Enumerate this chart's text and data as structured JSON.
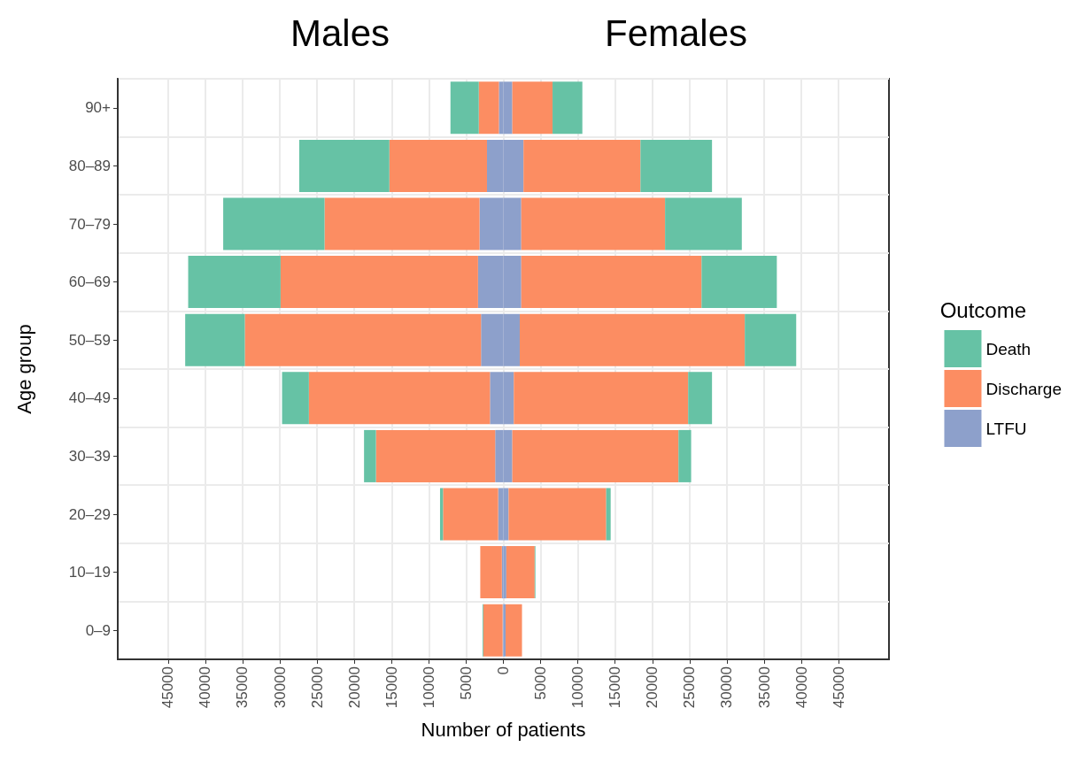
{
  "chart_data": {
    "type": "bar",
    "orientation": "horizontal",
    "stacked": true,
    "annotations": [
      "Males",
      "Females"
    ],
    "xlabel": "Number of patients",
    "ylabel": "Age group",
    "legend_title": "Outcome",
    "legend": "right",
    "grid": true,
    "categories": [
      "90+",
      "80–89",
      "70–79",
      "60–69",
      "50–59",
      "40–49",
      "30–39",
      "20–29",
      "10–19",
      "0–9"
    ],
    "xlim": [
      -51750,
      51750
    ],
    "xticks": [
      {
        "value": -45000,
        "label": "45000"
      },
      {
        "value": -40000,
        "label": "40000"
      },
      {
        "value": -35000,
        "label": "35000"
      },
      {
        "value": -30000,
        "label": "30000"
      },
      {
        "value": -25000,
        "label": "25000"
      },
      {
        "value": -20000,
        "label": "20000"
      },
      {
        "value": -15000,
        "label": "15000"
      },
      {
        "value": -10000,
        "label": "10000"
      },
      {
        "value": -5000,
        "label": "5000"
      },
      0,
      5000,
      10000,
      15000,
      20000,
      25000,
      30000,
      35000,
      40000,
      45000
    ],
    "series": [
      {
        "name": "LTFU",
        "color": "#8da0cb",
        "values": [
          -600,
          -2200,
          -3200,
          -3400,
          -3000,
          -1800,
          -1100,
          -700,
          -200,
          -100
        ]
      },
      {
        "color": "#8da0cb",
        "values": [
          1200,
          2700,
          2400,
          2400,
          2200,
          1400,
          1200,
          700,
          400,
          300
        ]
      },
      {
        "name": "Discharge",
        "color": "#fc8d62",
        "values": [
          -2700,
          -13100,
          -20800,
          -26500,
          -31700,
          -24300,
          -16000,
          -7400,
          -2900,
          -2600
        ]
      },
      {
        "color": "#fc8d62",
        "values": [
          5400,
          15700,
          19300,
          24200,
          30200,
          23400,
          22300,
          13100,
          3800,
          2200
        ]
      },
      {
        "name": "Death",
        "color": "#66c2a5",
        "values": [
          -3800,
          -12100,
          -13600,
          -12400,
          -8000,
          -3600,
          -1600,
          -400,
          null,
          -100
        ]
      },
      {
        "color": "#66c2a5",
        "values": [
          4000,
          9600,
          10300,
          10100,
          6900,
          3200,
          1700,
          600,
          100,
          null
        ]
      }
    ]
  }
}
